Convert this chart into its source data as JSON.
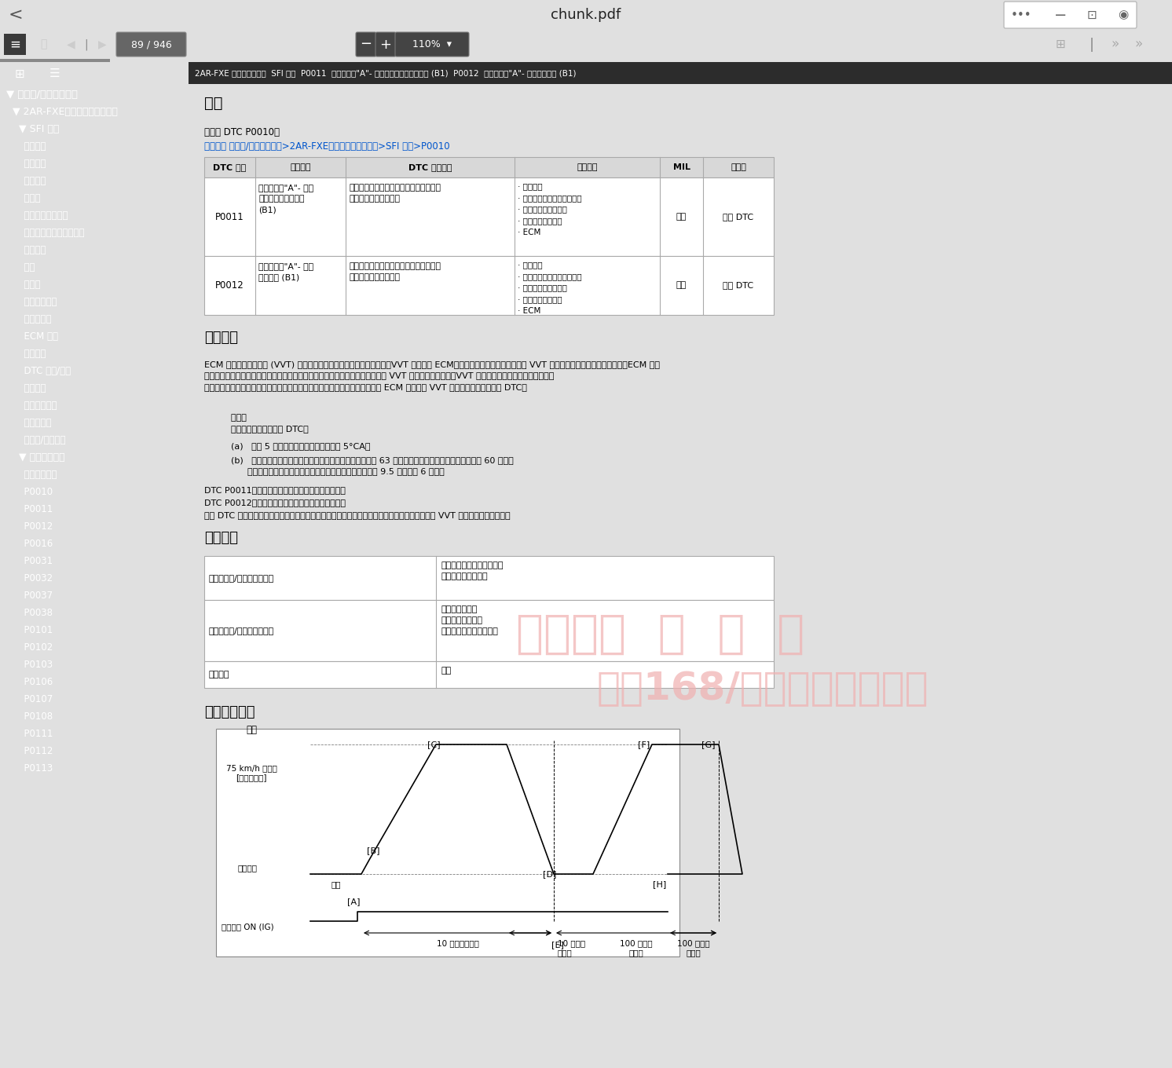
{
  "title_bar_text": "2AR-FXE 发动机控制系统  SFI 系统  P0011  凸轮轴位置\"A\"- 正时过于提前或系统性能 (B1)  P0012  凸轮轴位置\"A\"- 正时过于延迟 (B1)",
  "section1_title": "描述",
  "section1_text1": "请参考 DTC P0010。",
  "section1_text2": "单击此处 发动机/混合动力系统>2AR-FXE（发动机控制系统）>SFI 系统>P0010",
  "table1_headers": [
    "DTC 编号",
    "检测项目",
    "DTC 检测条件",
    "故障部位",
    "MIL",
    "存储器"
  ],
  "table1_row1_dtc": "P0011",
  "table1_row1_item": "凸轮轴位置\"A\"- 正时\n过于提前或系统性能\n(B1)",
  "table1_row1_cond": "进气门正时处于推前范围内时持续为特定\n值（单程检测逻辑）。",
  "table1_row1_fault": "· 气门正时\n· 凸轮轴正时机油控制阀总成\n· 凸轮轴正时齿轮总成\n· 机油控制阀滤清器\n· ECM",
  "table1_row1_mil": "点亮",
  "table1_row1_storage": "存储 DTC",
  "table1_row2_dtc": "P0012",
  "table1_row2_item": "凸轮轴位置\"A\"- 正时\n过于延迟 (B1)",
  "table1_row2_cond": "进气门正时处于延迟范围内时持续为特定\n值（双程检测逻辑）。",
  "table1_row2_fault": "· 气门正时\n· 凸轮轴正时机油控制阀总成\n· 凸轮轴正时齿轮总成\n· 机油控制阀滤清器\n· ECM",
  "table1_row2_mil": "点亮",
  "table1_row2_storage": "存储 DTC",
  "section2_title": "监视描述",
  "section2_para1": "ECM 利用可变气门正时 (VVT) 系统优化进气门正时以控制进气凸轮轴。VVT 系统包括 ECM、凸轮轴正时机油控制阀总成和 VVT 控制器（凸轮轴正时齿轮总成）。ECM 向凸\n轮轴正时机油控制阀总成发送目标占空比控制信号。该控制信号用来调节提供给 VVT 控制器的机油压力。VVT 控制器可提前或延迟进气凸轮轴。\n如果目标和实际进气门正时之间的差异太大，且实际进气门正时的变化小，则 ECM 将此视为 VVT 控制器卡滞故障并存储 DTC。",
  "example_indent": "    示例：\n    满足以下条件时，存储 DTC：",
  "cond_a": "    (a)   需要 5 秒或更长时间使气门正时改变 5°CA。",
  "cond_b": "    (b)   满足以上条件后，强制激活凸轮轴正时机油控制阀总成 63 次或更多次（车辆怠速运转时，需要约 60 秒）。\n          满足上述条件后，将凸轮轴正时机油控制阀总成强制激活 9.5 秒。（国 6 车型）",
  "dtc_note1": "DTC P0011（凸轮轴正时提前）符合单程检测逻辑。",
  "dtc_note2": "DTC P0012（凸轮轴正时延迟）符合双程检测逻辑。",
  "dtc_note3": "这些 DTC 表示因凸轮轴正时机油控制阀总成故障或凸轮轴正时机油控制阀总成中存在异物而导致 VVT 控制器不能正常工作。",
  "section3_title": "监视策略",
  "t2_label1": "所需传感器/零部件（主要）",
  "t2_val1": "凸轮轴正时机油控制阀总成\n凸轮轴正时齿轮总成",
  "t2_label2": "所需传感器/零部件（相关）",
  "t2_val2": "曲轴位置传感器\n凸轮轴位置传感器\n发动机冷却液温度传感器",
  "t2_label3": "工作频率",
  "t2_val3": "持续",
  "section4_title": "确认行驶模式",
  "wm1": "汽修帮手  资  料  库",
  "wm2": "仅收168/年，每周更新车型",
  "chunk_title": "chunk.pdf",
  "page_num": "89",
  "page_total": "946",
  "zoom_pct": "110%",
  "sidebar_color": "#3a3a3a",
  "topbar_color": "#f2f2f2",
  "toolbar_color": "#555555",
  "content_bg": "#ffffff",
  "title_strip_color": "#2c2c2c",
  "table_border_color": "#aaaaaa",
  "header_bg": "#d8d8d8",
  "wm_color": "#f0b0b0",
  "wm_alpha": 0.7,
  "sidebar_items": [
    [
      "▼ 发动机/混合动力系统",
      0
    ],
    [
      "  ▼ 2AR-FXE（发动机控制系统）",
      1
    ],
    [
      "    ▼ SFI 系统",
      2
    ],
    [
      "      注意事项",
      3
    ],
    [
      "      术语定义",
      3
    ],
    [
      "      零件位置",
      3
    ],
    [
      "      系统图",
      3
    ],
    [
      "      如何进行故障排除",
      3
    ],
    [
      "      检查是否存在间歇性故障",
      3
    ],
    [
      "      基本检查",
      3
    ],
    [
      "      注册",
      3
    ],
    [
      "      初始化",
      3
    ],
    [
      "      检查监视状态",
      3
    ],
    [
      "      故障症状表",
      3
    ],
    [
      "      ECM 端子",
      3
    ],
    [
      "      诊断系统",
      3
    ],
    [
      "      DTC 检查/清除",
      3
    ],
    [
      "      定格数据",
      3
    ],
    [
      "      检查模式程序",
      3
    ],
    [
      "      失效保护表",
      3
    ],
    [
      "      数据表/主动测试",
      3
    ],
    [
      "    ▼ 诊断故障码表",
      2
    ],
    [
      "      诊断故障码表",
      3
    ],
    [
      "      P0010",
      3
    ],
    [
      "      P0011",
      3
    ],
    [
      "      P0012",
      3
    ],
    [
      "      P0016",
      3
    ],
    [
      "      P0031",
      3
    ],
    [
      "      P0032",
      3
    ],
    [
      "      P0037",
      3
    ],
    [
      "      P0038",
      3
    ],
    [
      "      P0101",
      3
    ],
    [
      "      P0102",
      3
    ],
    [
      "      P0103",
      3
    ],
    [
      "      P0106",
      3
    ],
    [
      "      P0107",
      3
    ],
    [
      "      P0108",
      3
    ],
    [
      "      P0111",
      3
    ],
    [
      "      P0112",
      3
    ],
    [
      "      P0113",
      3
    ]
  ]
}
